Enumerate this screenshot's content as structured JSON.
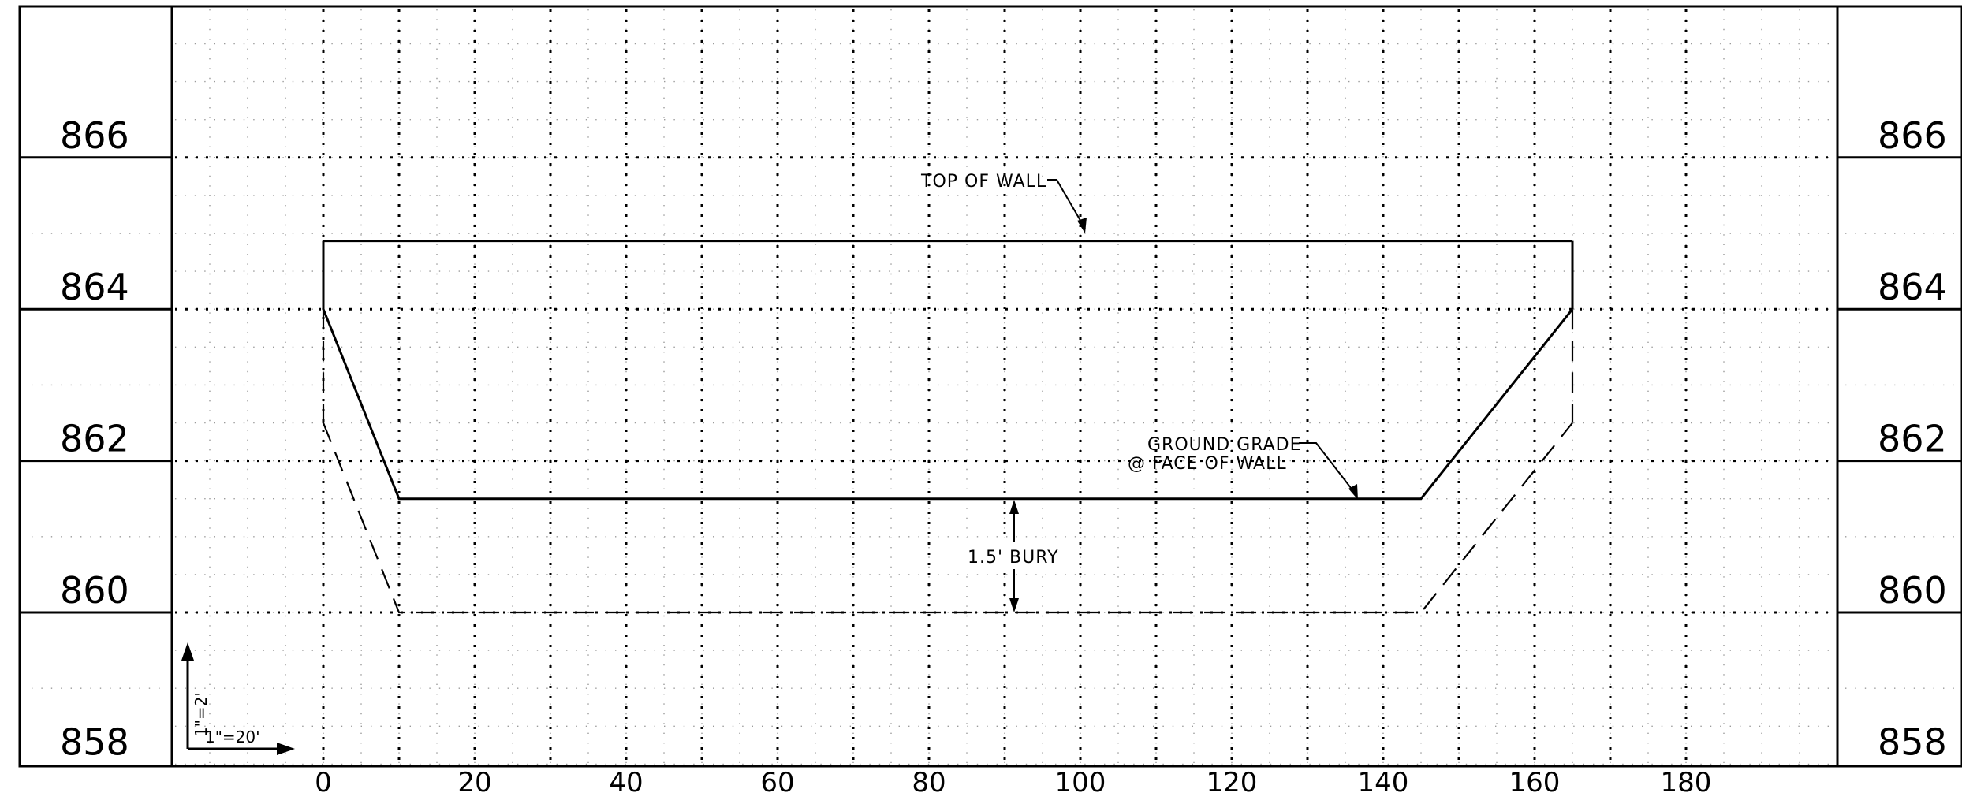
{
  "elevation_labels": [
    "866",
    "864",
    "862",
    "860",
    "858"
  ],
  "station_labels": [
    "0",
    "20",
    "40",
    "60",
    "80",
    "100",
    "120",
    "140",
    "160",
    "180"
  ],
  "annotations": {
    "top_of_wall": "TOP OF WALL",
    "ground_grade_line1": "GROUND GRADE",
    "ground_grade_line2": "@ FACE OF WALL",
    "bury": "1.5' BURY"
  },
  "scale": {
    "vertical": "1\"=2'",
    "horizontal": "1\"=20'"
  },
  "profile": {
    "top_of_wall": [
      [
        0,
        864.9
      ],
      [
        165,
        864.9
      ]
    ],
    "ground_grade": [
      [
        0,
        864.0
      ],
      [
        10,
        861.5
      ],
      [
        145,
        861.5
      ],
      [
        165,
        864.0
      ]
    ],
    "bottom_of_wall": [
      [
        0,
        862.5
      ],
      [
        10,
        860.0
      ],
      [
        145,
        860.0
      ],
      [
        165,
        862.5
      ]
    ],
    "wall_ends": [
      [
        0,
        864.9,
        862.5
      ],
      [
        165,
        864.9,
        862.5
      ]
    ],
    "bury_station": 91,
    "bury_range": [
      860.0,
      861.5
    ]
  }
}
